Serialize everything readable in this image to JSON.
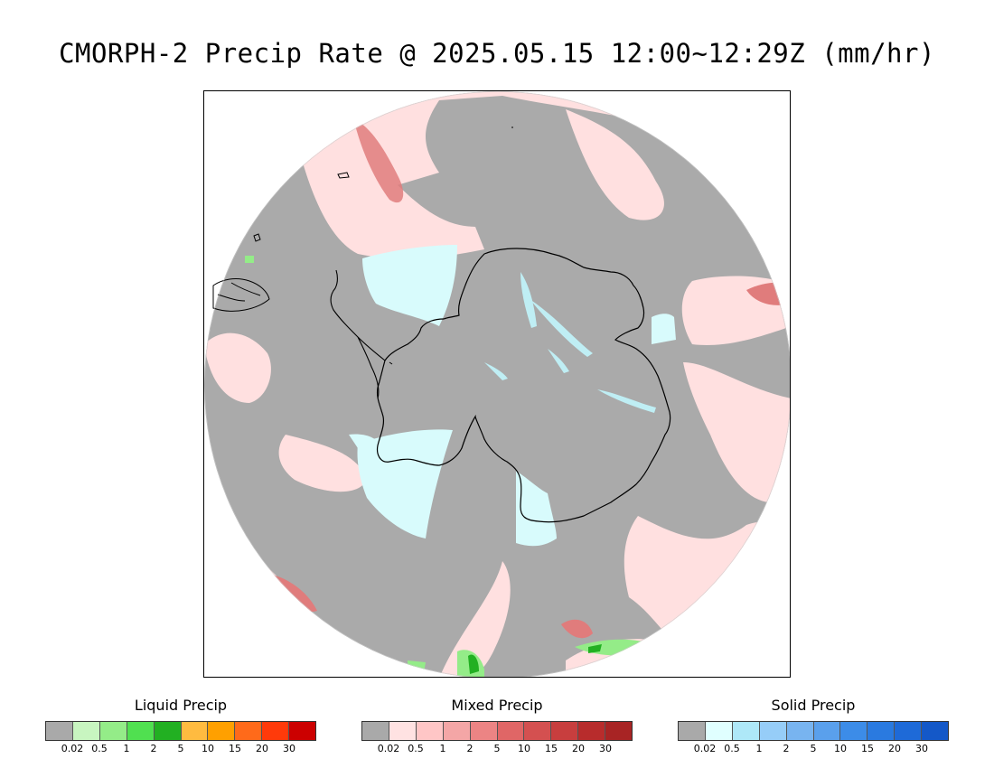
{
  "title": "CMORPH-2 Precip Rate @ 2025.05.15 12:00~12:29Z (mm/hr)",
  "map": {
    "projection": "south-polar-stereographic",
    "background_color": "#aaaaaa",
    "outside_color": "#ffffff",
    "coastline_color": "#000000"
  },
  "legends": [
    {
      "id": "liquid",
      "title": "Liquid Precip",
      "colors": [
        "#a9a9a9",
        "#c8f5c0",
        "#94ec88",
        "#50e050",
        "#22b022",
        "#ffbb40",
        "#ffa000",
        "#ff6a1a",
        "#ff3a0a",
        "#cc0000"
      ],
      "ticks": [
        "0.02",
        "0.5",
        "1",
        "2",
        "5",
        "10",
        "15",
        "20",
        "30"
      ]
    },
    {
      "id": "mixed",
      "title": "Mixed Precip",
      "colors": [
        "#a9a9a9",
        "#ffe2e2",
        "#ffc6c6",
        "#f4a6a6",
        "#ec8484",
        "#e06666",
        "#d45050",
        "#c83e3e",
        "#b82c2c",
        "#a82424"
      ],
      "ticks": [
        "0.02",
        "0.5",
        "1",
        "2",
        "5",
        "10",
        "15",
        "20",
        "30"
      ]
    },
    {
      "id": "solid",
      "title": "Solid Precip",
      "colors": [
        "#a9a9a9",
        "#e0ffff",
        "#aee8f8",
        "#96cdf8",
        "#78b4f0",
        "#5aa0ec",
        "#3c8ce8",
        "#2a7ae0",
        "#1e6ad8",
        "#1458c8"
      ],
      "ticks": [
        "0.02",
        "0.5",
        "1",
        "2",
        "5",
        "10",
        "15",
        "20",
        "30"
      ]
    }
  ]
}
